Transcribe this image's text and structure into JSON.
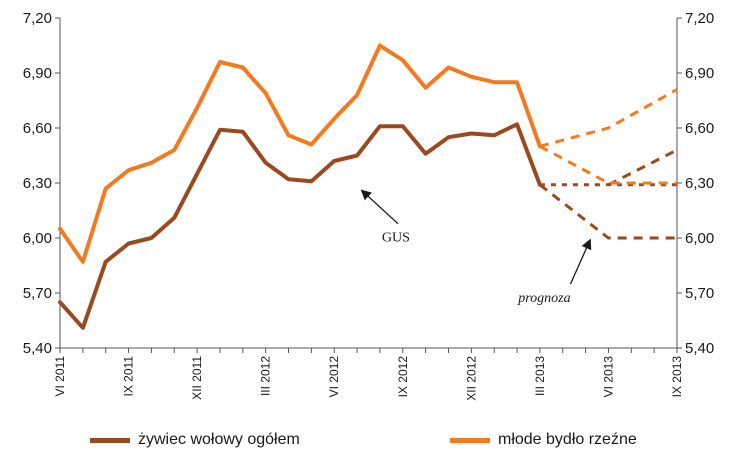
{
  "chart_data": {
    "type": "line",
    "y_tick_labels": [
      "7,20",
      "6,90",
      "6,60",
      "6,30",
      "6,00",
      "5,70",
      "5,40"
    ],
    "y_ticks": [
      7.2,
      6.9,
      6.6,
      6.3,
      6.0,
      5.7,
      5.4
    ],
    "ylim": [
      5.4,
      7.2
    ],
    "x_tick_labels": [
      "VI 2011",
      "IX 2011",
      "XII 2011",
      "III 2012",
      "VI 2012",
      "IX 2012",
      "XII 2012",
      "III 2013",
      "VI 2013",
      "IX 2013"
    ],
    "x_tick_positions": [
      0,
      3,
      6,
      9,
      12,
      15,
      18,
      21,
      24,
      27
    ],
    "xlim": [
      0,
      27
    ],
    "grid": false,
    "legend_position": "bottom",
    "series": [
      {
        "name": "żywiec wołowy ogółem",
        "color": "#9a4a1e",
        "x": [
          0,
          1,
          2,
          3,
          4,
          5,
          6,
          7,
          8,
          9,
          10,
          11,
          12,
          13,
          14,
          15,
          16,
          17,
          18,
          19,
          20,
          21
        ],
        "values": [
          5.65,
          5.51,
          5.87,
          5.97,
          6.0,
          6.11,
          6.35,
          6.59,
          6.58,
          6.41,
          6.32,
          6.31,
          6.42,
          6.45,
          6.61,
          6.61,
          6.46,
          6.55,
          6.57,
          6.56,
          6.62,
          6.29
        ]
      },
      {
        "name": "młode bydło rzeźne",
        "color": "#f47a20",
        "x": [
          0,
          1,
          2,
          3,
          4,
          5,
          6,
          7,
          8,
          9,
          10,
          11,
          12,
          13,
          14,
          15,
          16,
          17,
          18,
          19,
          20,
          21
        ],
        "values": [
          6.05,
          5.87,
          6.27,
          6.37,
          6.41,
          6.48,
          6.71,
          6.96,
          6.93,
          6.79,
          6.56,
          6.51,
          6.65,
          6.78,
          7.05,
          6.97,
          6.82,
          6.93,
          6.88,
          6.85,
          6.85,
          6.5
        ]
      }
    ],
    "forecast": [
      {
        "series": "żywiec wołowy ogółem",
        "color": "#9a4a1e",
        "style": "dotted",
        "x": [
          21,
          24,
          27
        ],
        "values": [
          6.29,
          6.29,
          6.29
        ]
      },
      {
        "series": "żywiec wołowy ogółem",
        "color": "#9a4a1e",
        "style": "dashed",
        "x": [
          21,
          24,
          27
        ],
        "values": [
          6.29,
          6.0,
          6.0
        ]
      },
      {
        "series": "żywiec wołowy ogółem",
        "color": "#9a4a1e",
        "style": "dashed",
        "x": [
          24,
          27
        ],
        "values": [
          6.29,
          6.48
        ]
      },
      {
        "series": "młode bydło rzeźne",
        "color": "#f47a20",
        "style": "dashed",
        "x": [
          21,
          24,
          27
        ],
        "values": [
          6.5,
          6.6,
          6.81
        ]
      },
      {
        "series": "młode bydło rzeźne",
        "color": "#f47a20",
        "style": "dashed",
        "x": [
          21,
          24,
          27
        ],
        "values": [
          6.5,
          6.3,
          6.3
        ]
      }
    ],
    "annotations": [
      {
        "text": "GUS",
        "x": 14.7,
        "y": 5.98,
        "arrow_to": [
          13.2,
          6.26
        ]
      },
      {
        "text": "prognoza",
        "x": 21.2,
        "y": 5.65,
        "arrow_to": [
          23.2,
          5.99
        ]
      }
    ]
  },
  "legend": [
    {
      "label": "żywiec wołowy ogółem",
      "color": "#9a4a1e"
    },
    {
      "label": "młode bydło rzeźne",
      "color": "#f47a20"
    }
  ]
}
